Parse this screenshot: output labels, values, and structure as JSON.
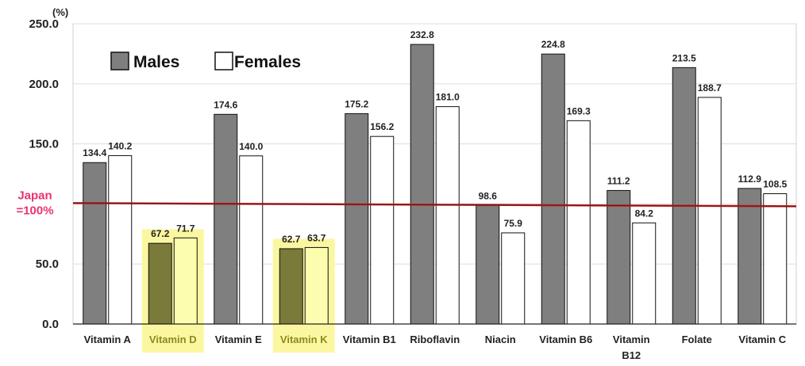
{
  "chart_data": {
    "type": "bar",
    "title": "",
    "xlabel": "",
    "ylabel": "",
    "unit_label": "(%)",
    "ylim": [
      0,
      250
    ],
    "yticks": [
      0,
      50,
      100,
      150,
      200,
      250
    ],
    "ytick_labels": [
      "0.0",
      "50.0",
      "",
      "150.0",
      "200.0",
      "250.0"
    ],
    "categories": [
      [
        "Vitamin A"
      ],
      [
        "Vitamin D"
      ],
      [
        "Vitamin E"
      ],
      [
        "Vitamin K"
      ],
      [
        "Vitamin B1"
      ],
      [
        "Riboflavin"
      ],
      [
        "Niacin"
      ],
      [
        "Vitamin B6"
      ],
      [
        "Vitamin",
        "B12"
      ],
      [
        "Folate"
      ],
      [
        "Vitamin C"
      ]
    ],
    "highlighted_categories": [
      1,
      3
    ],
    "series": [
      {
        "name": "Males",
        "color": "#7f7f7f",
        "highlight_color": "#7a7a3a",
        "values": [
          134.4,
          67.2,
          174.6,
          62.7,
          175.2,
          232.8,
          98.6,
          224.8,
          111.2,
          213.5,
          112.9
        ],
        "labels": [
          "134.4",
          "67.2",
          "174.6",
          "62.7",
          "175.2",
          "232.8",
          "98.6",
          "224.8",
          "111.2",
          "213.5",
          "112.9"
        ]
      },
      {
        "name": "Females",
        "color": "#ffffff",
        "highlight_color": "#fdfdb0",
        "values": [
          140.2,
          71.7,
          140.0,
          63.7,
          156.2,
          181.0,
          75.9,
          169.3,
          84.2,
          188.7,
          108.5
        ],
        "labels": [
          "140.2",
          "71.7",
          "140.0",
          "63.7",
          "156.2",
          "181.0",
          "75.9",
          "169.3",
          "84.2",
          "188.7",
          "108.5"
        ]
      }
    ],
    "reference_line": {
      "value": 100,
      "label_lines": [
        "Japan",
        "=100%"
      ],
      "color": "#cc1111"
    },
    "highlight_color": "#fbf7a0",
    "legend": {
      "position": "top-left"
    },
    "grid": true
  }
}
